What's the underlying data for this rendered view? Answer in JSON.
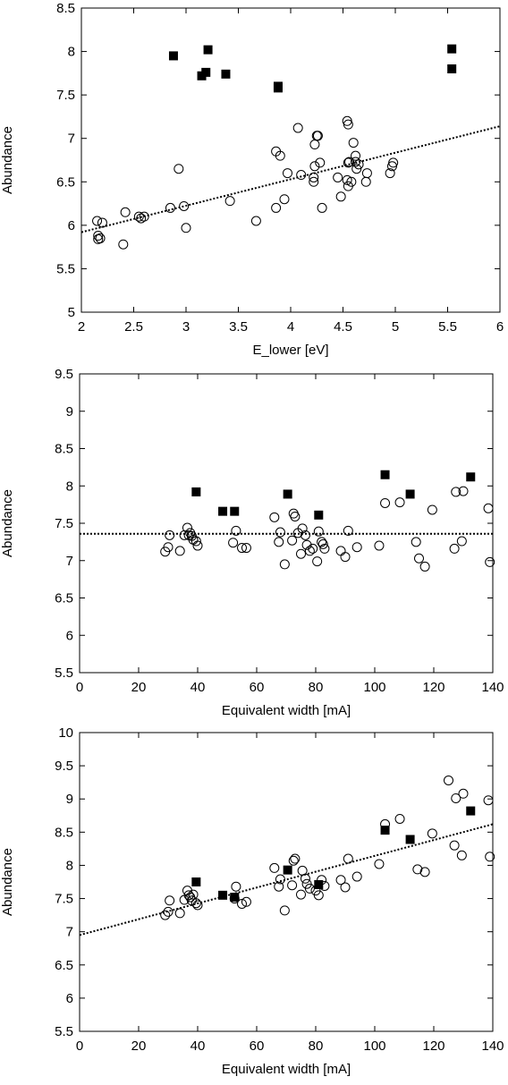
{
  "chart_data": [
    {
      "type": "scatter",
      "xlabel": "E_lower [eV]",
      "ylabel": "Abundance",
      "xlim": [
        2,
        6
      ],
      "ylim": [
        5,
        8.5
      ],
      "xticks": [
        2,
        2.5,
        3,
        3.5,
        4,
        4.5,
        5,
        5.5,
        6
      ],
      "xtick_labels": [
        "2",
        "2.5",
        "3",
        "3.5",
        "4",
        "4.5",
        "5",
        "5.5",
        "6"
      ],
      "yticks": [
        5,
        5.5,
        6,
        6.5,
        7,
        7.5,
        8,
        8.5
      ],
      "ytick_labels": [
        "5",
        "5.5",
        "6",
        "6.5",
        "7",
        "7.5",
        "8",
        "8.5"
      ],
      "grid": false,
      "series": [
        {
          "marker": "open-circle",
          "x": [
            2.15,
            2.16,
            2.18,
            2.2,
            2.16,
            2.4,
            2.42,
            2.55,
            2.57,
            2.6,
            2.85,
            2.93,
            2.98,
            3.0,
            3.42,
            3.67,
            3.86,
            3.86,
            3.9,
            3.94,
            3.97,
            4.07,
            4.1,
            4.22,
            4.22,
            4.23,
            4.23,
            4.25,
            4.28,
            4.3,
            4.26,
            4.45,
            4.48,
            4.54,
            4.55,
            4.56,
            4.55,
            4.54,
            4.55,
            4.58,
            4.6,
            4.62,
            4.62,
            4.63,
            4.65,
            4.72,
            4.73,
            4.95,
            4.97,
            4.98
          ],
          "y": [
            6.05,
            5.88,
            5.85,
            6.03,
            5.84,
            5.78,
            6.15,
            6.1,
            6.08,
            6.1,
            6.2,
            6.65,
            6.22,
            5.97,
            6.28,
            6.05,
            6.85,
            6.2,
            6.8,
            6.3,
            6.6,
            7.12,
            6.58,
            6.5,
            6.55,
            6.68,
            6.93,
            7.03,
            6.72,
            6.2,
            7.03,
            6.55,
            6.33,
            7.2,
            7.16,
            6.73,
            6.72,
            6.52,
            6.45,
            6.5,
            6.95,
            6.8,
            6.73,
            6.65,
            6.7,
            6.5,
            6.6,
            6.6,
            6.68,
            6.72
          ]
        },
        {
          "marker": "filled-square",
          "x": [
            2.88,
            3.15,
            3.19,
            3.21,
            3.38,
            3.88,
            3.88,
            5.54,
            5.54
          ],
          "y": [
            7.95,
            7.72,
            7.76,
            8.02,
            7.74,
            7.58,
            7.6,
            8.03,
            7.8
          ]
        }
      ],
      "trend_line": {
        "style": "dotted",
        "x": [
          2,
          6
        ],
        "y": [
          5.92,
          7.14
        ]
      }
    },
    {
      "type": "scatter",
      "xlabel": "Equivalent width [mA]",
      "ylabel": "Abundance",
      "xlim": [
        0,
        140
      ],
      "ylim": [
        5.5,
        9.5
      ],
      "xticks": [
        0,
        20,
        40,
        60,
        80,
        100,
        120,
        140
      ],
      "xtick_labels": [
        "0",
        "20",
        "40",
        "60",
        "80",
        "100",
        "120",
        "140"
      ],
      "yticks": [
        5.5,
        6,
        6.5,
        7,
        7.5,
        8,
        8.5,
        9,
        9.5
      ],
      "ytick_labels": [
        "5.5",
        "6",
        "6.5",
        "7",
        "7.5",
        "8",
        "8.5",
        "9",
        "9.5"
      ],
      "grid": false,
      "series": [
        {
          "marker": "open-circle",
          "x": [
            29,
            30,
            30.5,
            34,
            35.5,
            36.5,
            37,
            37.5,
            38,
            38.5,
            39.5,
            40,
            52,
            53,
            55,
            56.5,
            66,
            67.5,
            68,
            69.5,
            72,
            72.5,
            73,
            74,
            75,
            75.5,
            76.5,
            77,
            78,
            79,
            80.5,
            81,
            82,
            82.5,
            83,
            88.5,
            90,
            91,
            94,
            101.5,
            103.5,
            108.5,
            114,
            115,
            117,
            119.5,
            127,
            127.5,
            129.5,
            130,
            138.5,
            139
          ],
          "y": [
            7.12,
            7.18,
            7.34,
            7.13,
            7.34,
            7.44,
            7.34,
            7.37,
            7.33,
            7.28,
            7.26,
            7.2,
            7.24,
            7.4,
            7.17,
            7.17,
            7.58,
            7.25,
            7.38,
            6.95,
            7.27,
            7.63,
            7.59,
            7.37,
            7.09,
            7.43,
            7.34,
            7.21,
            7.13,
            7.16,
            6.99,
            7.39,
            7.25,
            7.22,
            7.16,
            7.13,
            7.05,
            7.4,
            7.18,
            7.2,
            7.77,
            7.78,
            7.25,
            7.03,
            6.92,
            7.68,
            7.16,
            7.92,
            7.26,
            7.93,
            7.7,
            6.98
          ]
        },
        {
          "marker": "filled-square",
          "x": [
            39.5,
            48.5,
            52.5,
            70.5,
            81,
            103.5,
            112,
            132.5
          ],
          "y": [
            7.92,
            7.66,
            7.66,
            7.89,
            7.61,
            8.15,
            7.89,
            8.12
          ]
        }
      ],
      "trend_line": {
        "style": "dotted",
        "x": [
          0,
          140
        ],
        "y": [
          7.36,
          7.36
        ]
      }
    },
    {
      "type": "scatter",
      "xlabel": "Equivalent width [mA]",
      "ylabel": "Abundance",
      "xlim": [
        0,
        140
      ],
      "ylim": [
        5.5,
        10
      ],
      "xticks": [
        0,
        20,
        40,
        60,
        80,
        100,
        120,
        140
      ],
      "xtick_labels": [
        "0",
        "20",
        "40",
        "60",
        "80",
        "100",
        "120",
        "140"
      ],
      "yticks": [
        5.5,
        6,
        6.5,
        7,
        7.5,
        8,
        8.5,
        9,
        9.5,
        10
      ],
      "ytick_labels": [
        "5.5",
        "6",
        "6.5",
        "7",
        "7.5",
        "8",
        "8.5",
        "9",
        "9.5",
        "10"
      ],
      "grid": false,
      "series": [
        {
          "marker": "open-circle",
          "x": [
            29,
            30,
            30.5,
            34,
            35.5,
            36.5,
            37,
            37.5,
            38,
            38.5,
            39.5,
            40,
            52.5,
            53,
            55,
            56.5,
            66,
            67.5,
            68,
            69.5,
            72,
            72.5,
            73,
            75,
            75.5,
            76.5,
            77,
            78,
            80,
            81,
            82,
            83,
            88.5,
            90,
            91,
            94,
            101.5,
            103.5,
            108.5,
            114.5,
            117,
            119.5,
            125,
            127,
            127.5,
            129.5,
            130,
            138.5,
            139
          ],
          "y": [
            7.25,
            7.3,
            7.47,
            7.28,
            7.48,
            7.62,
            7.55,
            7.52,
            7.47,
            7.56,
            7.43,
            7.4,
            7.5,
            7.68,
            7.42,
            7.45,
            7.96,
            7.68,
            7.79,
            7.32,
            7.7,
            8.07,
            8.1,
            7.56,
            7.92,
            7.8,
            7.72,
            7.65,
            7.62,
            7.55,
            7.78,
            7.69,
            7.78,
            7.67,
            8.1,
            7.83,
            8.02,
            8.62,
            8.7,
            7.94,
            7.9,
            8.48,
            9.28,
            8.3,
            9.01,
            8.15,
            9.08,
            8.98,
            8.13
          ]
        },
        {
          "marker": "filled-square",
          "x": [
            39.5,
            48.5,
            52.5,
            70.5,
            81,
            103.5,
            112,
            132.5
          ],
          "y": [
            7.75,
            7.55,
            7.52,
            7.93,
            7.71,
            8.53,
            8.39,
            8.82
          ]
        }
      ],
      "trend_line": {
        "style": "dotted",
        "x": [
          0,
          140
        ],
        "y": [
          6.95,
          8.62
        ]
      }
    }
  ]
}
